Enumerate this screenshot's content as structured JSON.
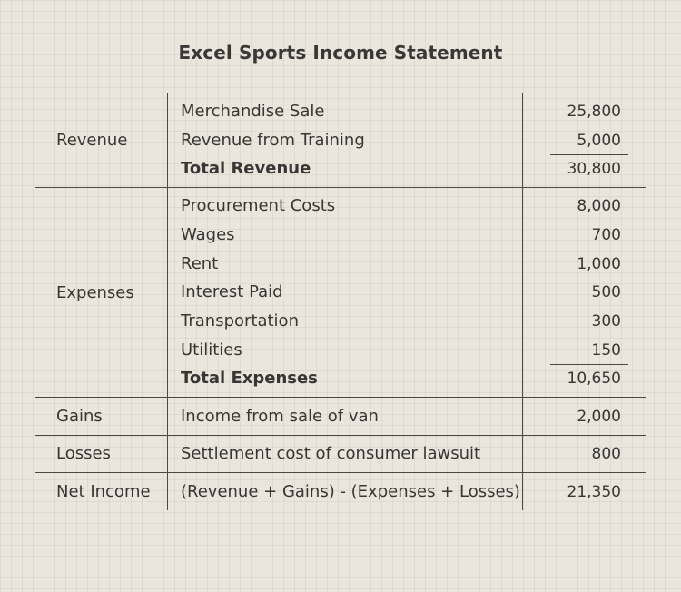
{
  "title": "Excel Sports Income Statement",
  "sections": {
    "revenue": {
      "label": "Revenue",
      "rows": [
        {
          "item": "Merchandise Sale",
          "amount": "25,800"
        },
        {
          "item": "Revenue from Training",
          "amount": "5,000"
        }
      ],
      "total": {
        "item": "Total Revenue",
        "amount": "30,800"
      }
    },
    "expenses": {
      "label": "Expenses",
      "rows": [
        {
          "item": "Procurement Costs",
          "amount": "8,000"
        },
        {
          "item": "Wages",
          "amount": "700"
        },
        {
          "item": "Rent",
          "amount": "1,000"
        },
        {
          "item": "Interest Paid",
          "amount": "500"
        },
        {
          "item": "Transportation",
          "amount": "300"
        },
        {
          "item": "Utilities",
          "amount": "150"
        }
      ],
      "total": {
        "item": "Total Expenses",
        "amount": "10,650"
      }
    },
    "gains": {
      "label": "Gains",
      "item": "Income from sale of van",
      "amount": "2,000"
    },
    "losses": {
      "label": "Losses",
      "item": "Settlement cost of consumer lawsuit",
      "amount": "800"
    },
    "net_income": {
      "label": "Net Income",
      "item": "(Revenue + Gains) - (Expenses + Losses)",
      "amount": "21,350"
    }
  }
}
